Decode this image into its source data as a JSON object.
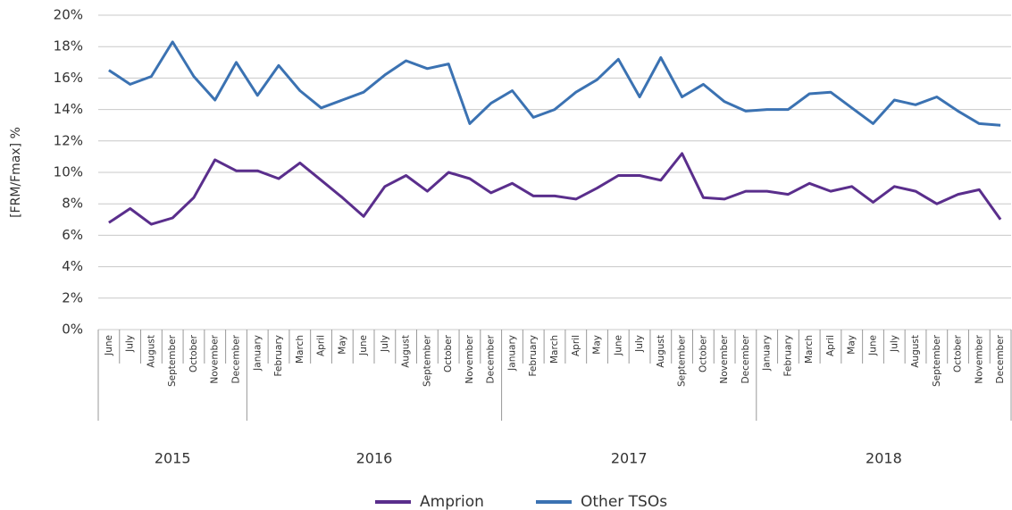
{
  "chart_data": {
    "type": "line",
    "y_label": "[FRM/Fmax] %",
    "category_groups": [
      {
        "name": "2015",
        "categories": [
          "June",
          "July",
          "August",
          "September",
          "October",
          "November",
          "December"
        ]
      },
      {
        "name": "2016",
        "categories": [
          "January",
          "February",
          "March",
          "April",
          "May",
          "June",
          "July",
          "August",
          "September",
          "October",
          "November",
          "December"
        ]
      },
      {
        "name": "2017",
        "categories": [
          "January",
          "February",
          "March",
          "April",
          "May",
          "June",
          "July",
          "August",
          "September",
          "October",
          "November",
          "December"
        ]
      },
      {
        "name": "2018",
        "categories": [
          "January",
          "February",
          "March",
          "April",
          "May",
          "June",
          "July",
          "August",
          "September",
          "October",
          "November",
          "December"
        ]
      }
    ],
    "series": [
      {
        "name": "Amprion",
        "color": "#5a2e8c",
        "values": [
          6.8,
          7.7,
          6.7,
          7.1,
          8.4,
          10.8,
          10.1,
          10.1,
          9.6,
          10.6,
          9.5,
          8.4,
          7.2,
          9.1,
          9.8,
          8.8,
          10.0,
          9.6,
          8.7,
          9.3,
          8.5,
          8.5,
          8.3,
          9.0,
          9.8,
          9.8,
          9.5,
          11.2,
          8.4,
          8.3,
          8.8,
          8.8,
          8.6,
          9.3,
          8.8,
          9.1,
          8.1,
          9.1,
          8.8,
          8.0,
          8.6,
          8.9,
          7.0
        ]
      },
      {
        "name": "Other TSOs",
        "color": "#3b72b2",
        "values": [
          16.5,
          15.6,
          16.1,
          18.3,
          16.1,
          14.6,
          17.0,
          14.9,
          16.8,
          15.2,
          14.1,
          14.6,
          15.1,
          16.2,
          17.1,
          16.6,
          16.9,
          13.1,
          14.4,
          15.2,
          13.5,
          14.0,
          15.1,
          15.9,
          17.2,
          14.8,
          17.3,
          14.8,
          15.6,
          14.5,
          13.9,
          14.0,
          14.0,
          15.0,
          15.1,
          14.1,
          13.1,
          14.6,
          14.3,
          14.8,
          13.9,
          13.1,
          13.0
        ]
      }
    ],
    "ylim": [
      0,
      20
    ],
    "yticks": [
      {
        "value": 0,
        "label": "0%"
      },
      {
        "value": 2,
        "label": "2%"
      },
      {
        "value": 4,
        "label": "4%"
      },
      {
        "value": 6,
        "label": "6%"
      },
      {
        "value": 8,
        "label": "8%"
      },
      {
        "value": 10,
        "label": "10%"
      },
      {
        "value": 12,
        "label": "12%"
      },
      {
        "value": 14,
        "label": "14%"
      },
      {
        "value": 16,
        "label": "16%"
      },
      {
        "value": 18,
        "label": "18%"
      },
      {
        "value": 20,
        "label": "20%"
      }
    ],
    "grid": true,
    "legend": "bottom"
  }
}
